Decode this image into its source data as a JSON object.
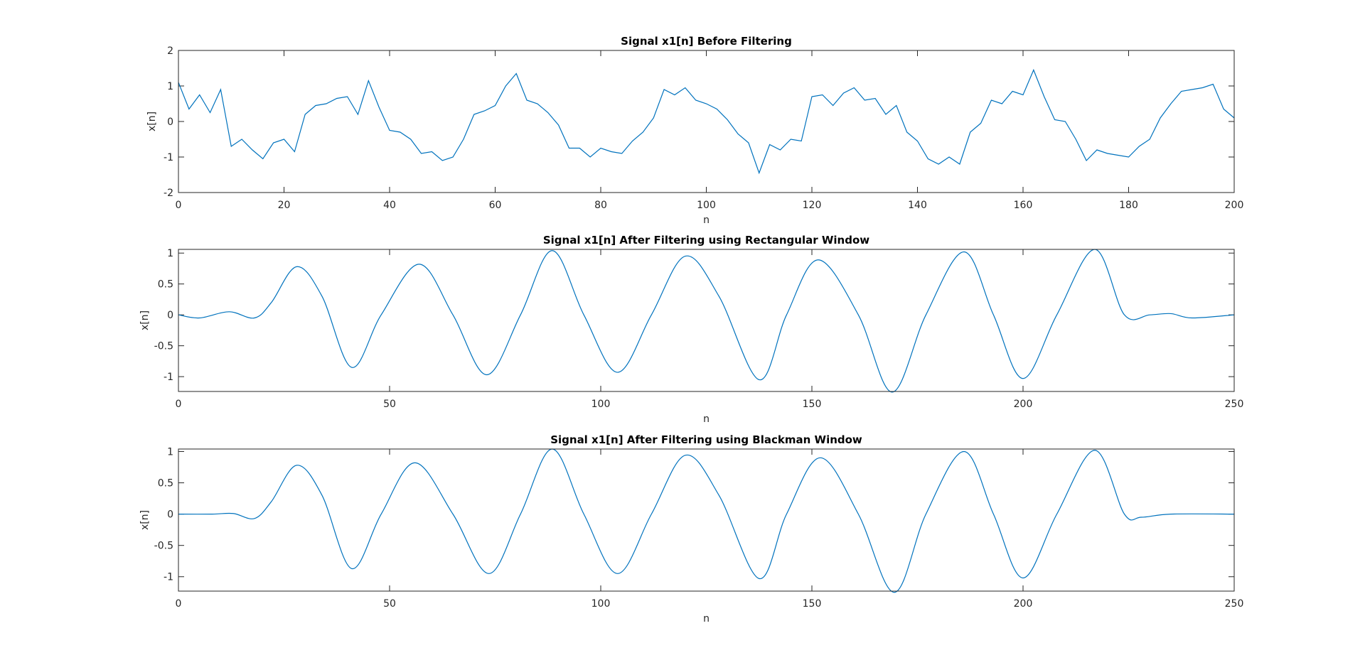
{
  "chart_data": [
    {
      "type": "line",
      "title": "Signal x1[n] Before Filtering",
      "x_label": "n",
      "y_label": "x[n]",
      "color": "#0072bd",
      "x": [
        0,
        2,
        4,
        6,
        8,
        10,
        12,
        14,
        16,
        18,
        20,
        22,
        24,
        26,
        28,
        30,
        32,
        34,
        36,
        38,
        40,
        42,
        44,
        46,
        48,
        50,
        52,
        54,
        56,
        58,
        60,
        62,
        64,
        66,
        68,
        70,
        72,
        74,
        76,
        78,
        80,
        82,
        84,
        86,
        88,
        90,
        92,
        94,
        96,
        98,
        100,
        102,
        104,
        106,
        108,
        110,
        112,
        114,
        116,
        118,
        120,
        122,
        124,
        126,
        128,
        130,
        132,
        134,
        136,
        138,
        140,
        142,
        144,
        146,
        148,
        150,
        152,
        154,
        156,
        158,
        160,
        162,
        164,
        166,
        168,
        170,
        172,
        174,
        176,
        178,
        180,
        182,
        184,
        186,
        188,
        190,
        192,
        194,
        196,
        198,
        200
      ],
      "values": [
        1.1,
        0.35,
        0.75,
        0.25,
        0.9,
        -0.7,
        -0.5,
        -0.8,
        -1.05,
        -0.6,
        -0.5,
        -0.85,
        0.2,
        0.45,
        0.5,
        0.65,
        0.7,
        0.2,
        1.15,
        0.4,
        -0.25,
        -0.3,
        -0.5,
        -0.9,
        -0.85,
        -1.1,
        -1.0,
        -0.5,
        0.2,
        0.3,
        0.45,
        1.0,
        1.35,
        0.6,
        0.5,
        0.25,
        -0.1,
        -0.75,
        -0.75,
        -1.0,
        -0.75,
        -0.85,
        -0.9,
        -0.55,
        -0.3,
        0.1,
        0.9,
        0.75,
        0.95,
        0.6,
        0.5,
        0.35,
        0.05,
        -0.35,
        -0.6,
        -1.45,
        -0.65,
        -0.8,
        -0.5,
        -0.55,
        0.7,
        0.75,
        0.45,
        0.8,
        0.95,
        0.6,
        0.65,
        0.2,
        0.45,
        -0.3,
        -0.55,
        -1.05,
        -1.2,
        -1.0,
        -1.2,
        -0.3,
        -0.05,
        0.6,
        0.5,
        0.85,
        0.75,
        1.45,
        0.7,
        0.05,
        0.0,
        -0.5,
        -1.1,
        -0.8,
        -0.9,
        -0.95,
        -1.0,
        -0.7,
        -0.5,
        0.1,
        0.5,
        0.85,
        0.9,
        0.95,
        1.05,
        0.35,
        0.1
      ],
      "xlim": [
        0,
        200
      ],
      "xticks": [
        0,
        20,
        40,
        60,
        80,
        100,
        120,
        140,
        160,
        180,
        200
      ],
      "ylim": [
        -2,
        2
      ],
      "yticks": [
        -2,
        -1,
        0,
        1,
        2
      ]
    },
    {
      "type": "line",
      "title": "Signal x1[n]  After Filtering using Rectangular Window",
      "x_label": "n",
      "y_label": "x[n]",
      "color": "#0072bd",
      "x": [
        0,
        5,
        12,
        18,
        22,
        28,
        34,
        41,
        48,
        57,
        65,
        73,
        81,
        88.5,
        96,
        104,
        112,
        120,
        128,
        137.5,
        144,
        151.5,
        161,
        169,
        177,
        186,
        193,
        200,
        208,
        217,
        224,
        230,
        235,
        240,
        250
      ],
      "values": [
        0,
        -0.05,
        0.05,
        -0.05,
        0.2,
        0.78,
        0.3,
        -0.85,
        0,
        0.82,
        0,
        -0.97,
        0,
        1.04,
        0,
        -0.93,
        0,
        0.95,
        0.3,
        -1.05,
        0,
        0.89,
        0,
        -1.25,
        0,
        1.02,
        0,
        -1.03,
        0,
        1.06,
        0,
        0,
        0.02,
        -0.05,
        0
      ],
      "xlim": [
        0,
        250
      ],
      "xticks": [
        0,
        50,
        100,
        150,
        200,
        250
      ],
      "ylim": [
        -1.24,
        1.06
      ],
      "yticks": [
        -1,
        -0.5,
        0,
        0.5,
        1
      ]
    },
    {
      "type": "line",
      "title": "Signal x1[n] After Filtering using Blackman Window",
      "x_label": "n",
      "y_label": "x[n]",
      "color": "#0072bd",
      "x": [
        0,
        8,
        13,
        18,
        22,
        28,
        34,
        41,
        48,
        56,
        65,
        73.5,
        81,
        88.5,
        96,
        104,
        112,
        120,
        128,
        137.5,
        144,
        152,
        161,
        169.5,
        177,
        186,
        193,
        200,
        208,
        217,
        224,
        228,
        235,
        250
      ],
      "values": [
        0,
        0,
        0.01,
        -0.07,
        0.2,
        0.78,
        0.3,
        -0.87,
        0,
        0.82,
        0,
        -0.95,
        0,
        1.04,
        0,
        -0.95,
        0,
        0.94,
        0.3,
        -1.03,
        0,
        0.9,
        0,
        -1.25,
        0,
        1.0,
        0,
        -1.02,
        0,
        1.02,
        0,
        -0.05,
        0,
        0
      ],
      "xlim": [
        0,
        250
      ],
      "xticks": [
        0,
        50,
        100,
        150,
        200,
        250
      ],
      "ylim": [
        -1.23,
        1.04
      ],
      "yticks": [
        -1,
        -0.5,
        0,
        0.5,
        1
      ]
    }
  ]
}
